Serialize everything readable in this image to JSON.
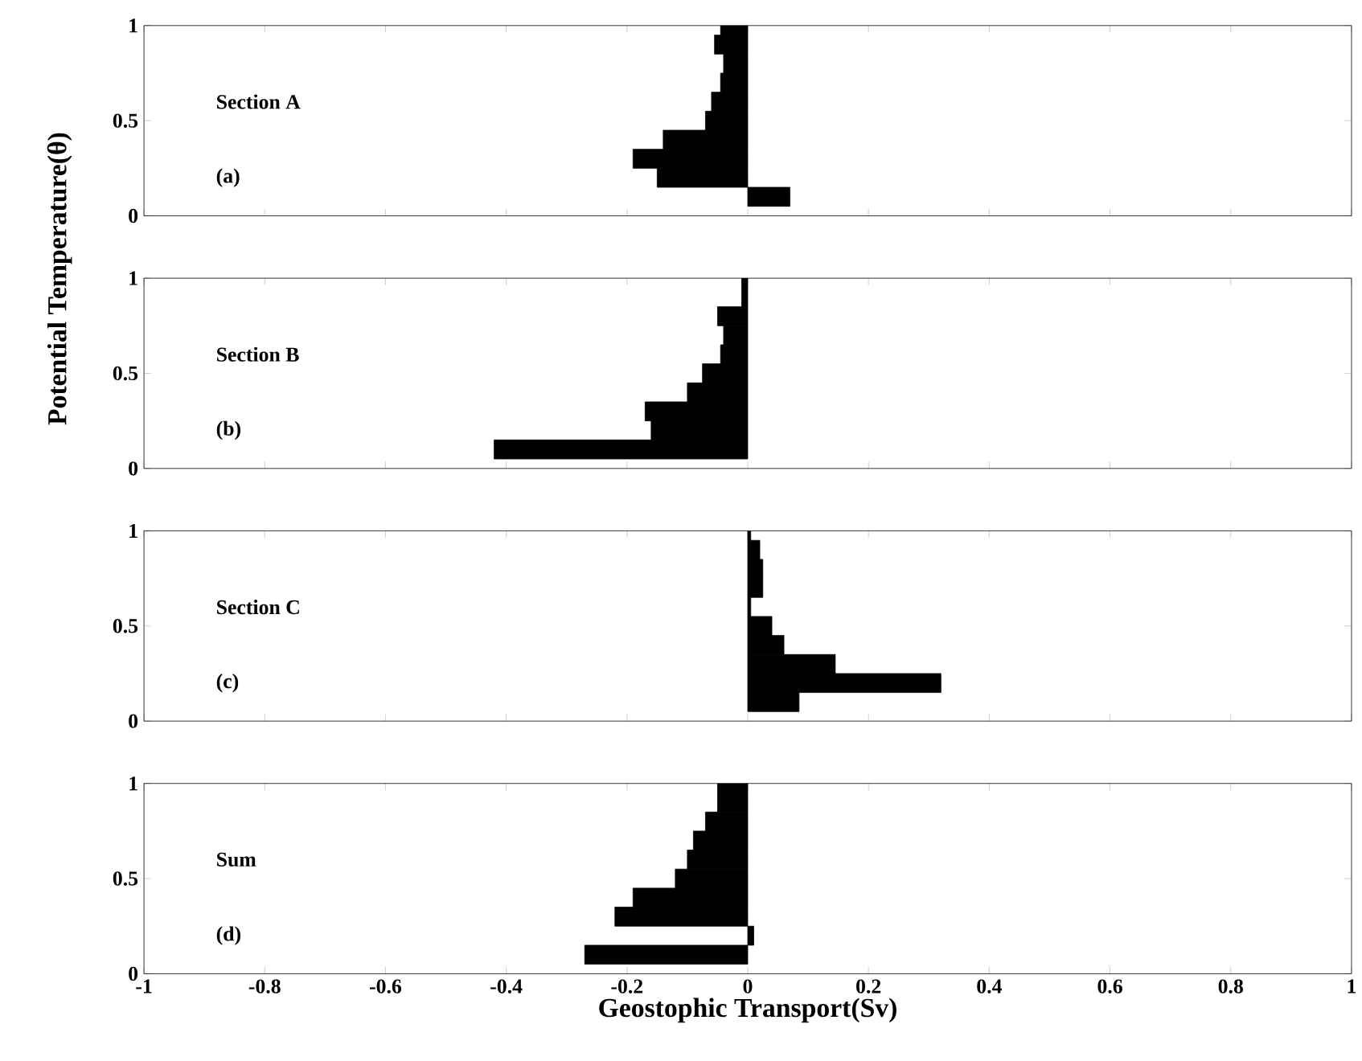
{
  "chart_data": [
    {
      "type": "bar",
      "orientation": "horizontal",
      "color": "#000000",
      "x": [
        0.1,
        0.2,
        0.3,
        0.4,
        0.5,
        0.6,
        0.7,
        0.8,
        0.9,
        1.0
      ],
      "values": [
        0.07,
        -0.15,
        -0.19,
        -0.14,
        -0.07,
        -0.06,
        -0.045,
        -0.04,
        -0.055,
        -0.045
      ],
      "annotations": [
        "Section A",
        "(a)"
      ],
      "ylabel": "Potential Temperature(θ)",
      "xlim": [
        -1,
        1
      ],
      "xticks": [
        -1,
        -0.8,
        -0.6,
        -0.4,
        -0.2,
        0,
        0.2,
        0.4,
        0.6,
        0.8,
        1
      ],
      "ylim": [
        0,
        1
      ],
      "yticks": [
        0,
        0.5,
        1
      ],
      "tick_labels": "y"
    },
    {
      "type": "bar",
      "orientation": "horizontal",
      "color": "#000000",
      "x": [
        0.1,
        0.2,
        0.3,
        0.4,
        0.5,
        0.6,
        0.7,
        0.8,
        0.9,
        1.0
      ],
      "values": [
        -0.42,
        -0.16,
        -0.17,
        -0.1,
        -0.075,
        -0.045,
        -0.04,
        -0.05,
        -0.01,
        -0.01
      ],
      "annotations": [
        "Section B",
        "(b)"
      ],
      "xlim": [
        -1,
        1
      ],
      "xticks": [
        -1,
        -0.8,
        -0.6,
        -0.4,
        -0.2,
        0,
        0.2,
        0.4,
        0.6,
        0.8,
        1
      ],
      "ylim": [
        0,
        1
      ],
      "yticks": [
        0,
        0.5,
        1
      ],
      "tick_labels": "y"
    },
    {
      "type": "bar",
      "orientation": "horizontal",
      "color": "#000000",
      "x": [
        0.1,
        0.2,
        0.3,
        0.4,
        0.5,
        0.6,
        0.7,
        0.8,
        0.9,
        1.0
      ],
      "values": [
        0.085,
        0.32,
        0.145,
        0.06,
        0.04,
        0.005,
        0.025,
        0.025,
        0.02,
        0.005
      ],
      "annotations": [
        "Section C",
        "(c)"
      ],
      "xlim": [
        -1,
        1
      ],
      "xticks": [
        -1,
        -0.8,
        -0.6,
        -0.4,
        -0.2,
        0,
        0.2,
        0.4,
        0.6,
        0.8,
        1
      ],
      "ylim": [
        0,
        1
      ],
      "yticks": [
        0,
        0.5,
        1
      ],
      "tick_labels": "y"
    },
    {
      "type": "bar",
      "orientation": "horizontal",
      "color": "#000000",
      "x": [
        0.1,
        0.2,
        0.3,
        0.4,
        0.5,
        0.6,
        0.7,
        0.8,
        0.9,
        1.0
      ],
      "values": [
        -0.27,
        0.01,
        -0.22,
        -0.19,
        -0.12,
        -0.1,
        -0.09,
        -0.07,
        -0.05,
        -0.05
      ],
      "annotations": [
        "Sum",
        "(d)"
      ],
      "xlabel": "Geostophic Transport(Sv)",
      "xlim": [
        -1,
        1
      ],
      "xticks": [
        -1,
        -0.8,
        -0.6,
        -0.4,
        -0.2,
        0,
        0.2,
        0.4,
        0.6,
        0.8,
        1
      ],
      "ylim": [
        0,
        1
      ],
      "yticks": [
        0,
        0.5,
        1
      ]
    }
  ]
}
